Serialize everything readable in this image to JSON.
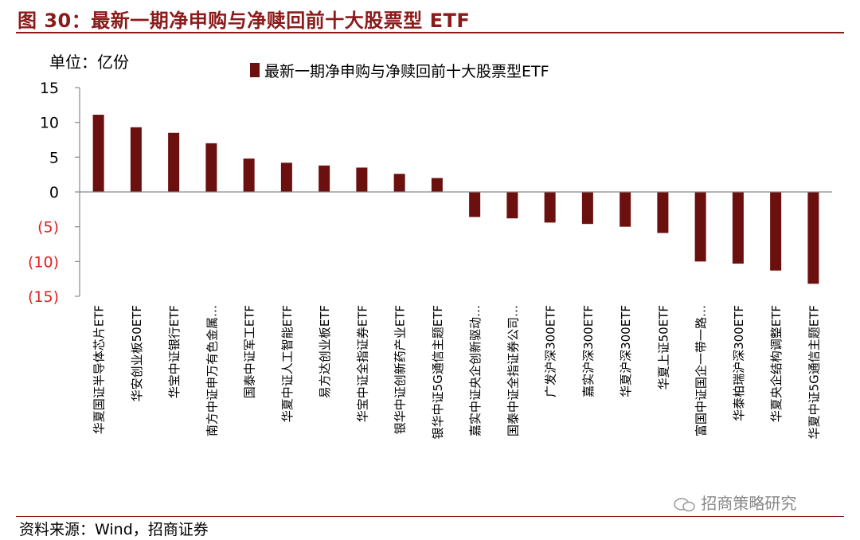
{
  "header": {
    "title": "图 30：最新一期净申购与净赎回前十大股票型 ETF",
    "unit": "单位：亿份"
  },
  "footer": {
    "source": "资料来源：Wind，招商证券",
    "watermark": "招商策略研究"
  },
  "colors": {
    "bar": "#6b0f0f",
    "title": "#8b1a1a",
    "negative_tick": "#e02020"
  },
  "chart_data": {
    "type": "bar",
    "legend_position": "top-center",
    "grid": false,
    "ylim": [
      -15,
      15
    ],
    "yticks": [
      15,
      10,
      5,
      0,
      -5,
      -10,
      -15
    ],
    "ytick_labels": [
      "15",
      "10",
      "5",
      "0",
      "(5)",
      "(10)",
      "(15)"
    ],
    "categories": [
      "华夏国证半导体芯片ETF",
      "华安创业板50ETF",
      "华宝中证银行ETF",
      "南方中证申万有色金属…",
      "国泰中证军工ETF",
      "华夏中证人工智能ETF",
      "易方达创业板ETF",
      "华宝中证全指证券ETF",
      "银华中证创新药产业ETF",
      "银华中证5G通信主题ETF",
      "嘉实中证央企创新驱动…",
      "国泰中证全指证券公司…",
      "广发沪深300ETF",
      "嘉实沪深300ETF",
      "华夏沪深300ETF",
      "华夏上证50ETF",
      "富国中证国企一带一路…",
      "华泰柏瑞沪深300ETF",
      "华夏央企结构调整ETF",
      "华夏中证5G通信主题ETF"
    ],
    "series": [
      {
        "name": "最新一期净申购与净赎回前十大股票型ETF",
        "values": [
          11.1,
          9.3,
          8.5,
          7.0,
          4.8,
          4.2,
          3.8,
          3.5,
          2.6,
          2.0,
          -3.6,
          -3.8,
          -4.4,
          -4.6,
          -5.0,
          -5.9,
          -10.0,
          -10.3,
          -11.3,
          -13.2
        ]
      }
    ]
  }
}
